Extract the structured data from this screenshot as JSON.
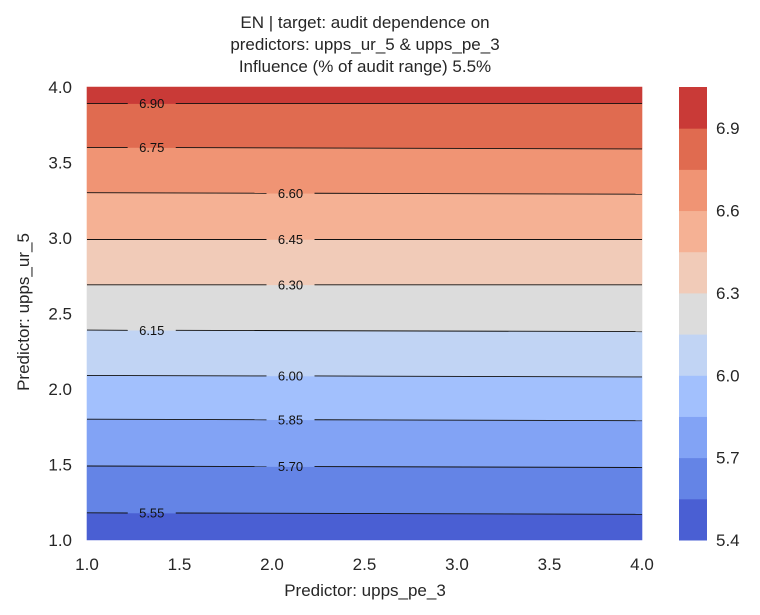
{
  "chart_data": {
    "type": "contour",
    "title_lines": [
      "EN | target: audit dependence on",
      "predictors: upps_ur_5 & upps_pe_3",
      "Influence (% of audit range) 5.5%"
    ],
    "xlabel": "Predictor: upps_pe_3",
    "ylabel": "Predictor: upps_ur_5",
    "xlim": [
      1.0,
      4.0
    ],
    "ylim": [
      1.0,
      4.0
    ],
    "x_ticks": [
      "1.0",
      "1.5",
      "2.0",
      "2.5",
      "3.0",
      "3.5",
      "4.0"
    ],
    "y_ticks": [
      "1.0",
      "1.5",
      "2.0",
      "2.5",
      "3.0",
      "3.5",
      "4.0"
    ],
    "levels": [
      5.4,
      5.55,
      5.7,
      5.85,
      6.0,
      6.15,
      6.3,
      6.45,
      6.6,
      6.75,
      6.9,
      7.05
    ],
    "fill_colors": [
      "#4a5fd3",
      "#6484e6",
      "#82a3f5",
      "#a2c0fd",
      "#c1d4f4",
      "#dcdcdc",
      "#f1cbb8",
      "#f5b194",
      "#f09474",
      "#e06b50",
      "#c93a37"
    ],
    "contour_lines": [
      {
        "value": 5.55,
        "label": "5.55",
        "y_left": 1.18,
        "y_right": 1.17,
        "label_x": 1.35
      },
      {
        "value": 5.7,
        "label": "5.70",
        "y_left": 1.49,
        "y_right": 1.48,
        "label_x": 2.1
      },
      {
        "value": 5.85,
        "label": "5.85",
        "y_left": 1.8,
        "y_right": 1.79,
        "label_x": 2.1
      },
      {
        "value": 6.0,
        "label": "6.00",
        "y_left": 2.09,
        "y_right": 2.08,
        "label_x": 2.1
      },
      {
        "value": 6.15,
        "label": "6.15",
        "y_left": 2.39,
        "y_right": 2.38,
        "label_x": 1.35
      },
      {
        "value": 6.3,
        "label": "6.30",
        "y_left": 2.69,
        "y_right": 2.69,
        "label_x": 2.1
      },
      {
        "value": 6.45,
        "label": "6.45",
        "y_left": 2.99,
        "y_right": 2.99,
        "label_x": 2.1
      },
      {
        "value": 6.6,
        "label": "6.60",
        "y_left": 3.3,
        "y_right": 3.29,
        "label_x": 2.1
      },
      {
        "value": 6.75,
        "label": "6.75",
        "y_left": 3.6,
        "y_right": 3.59,
        "label_x": 1.35
      },
      {
        "value": 6.9,
        "label": "6.90",
        "y_left": 3.89,
        "y_right": 3.89,
        "label_x": 1.35
      }
    ],
    "colorbar": {
      "range": [
        5.4,
        7.05
      ],
      "ticks": [
        "5.4",
        "5.7",
        "6.0",
        "6.3",
        "6.6",
        "6.9"
      ]
    }
  }
}
